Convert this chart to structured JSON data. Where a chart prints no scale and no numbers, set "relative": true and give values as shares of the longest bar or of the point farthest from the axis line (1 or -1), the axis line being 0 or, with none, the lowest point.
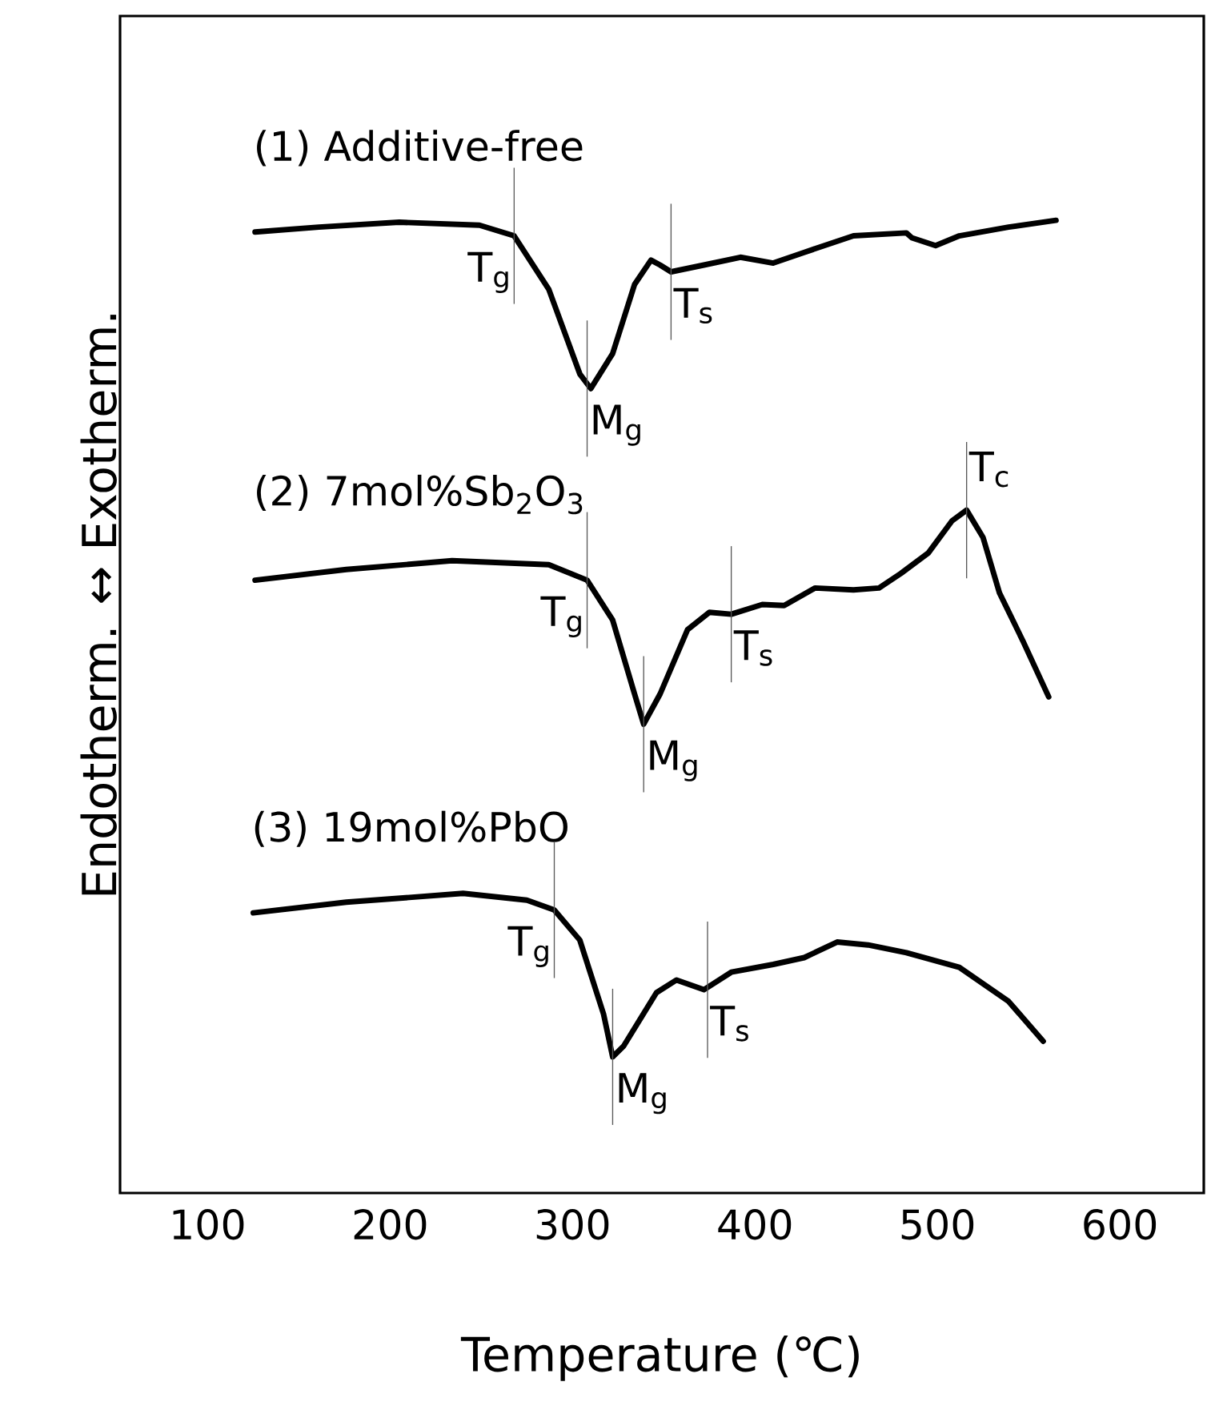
{
  "chart_data": {
    "type": "line",
    "relative": true,
    "xlabel": "Temperature (℃)",
    "ylabel": "Endotherm. ↔ Exotherm.",
    "xlim": [
      52,
      646
    ],
    "xticks": [
      100,
      200,
      300,
      400,
      500,
      600
    ],
    "grid": false,
    "marker": "none",
    "line_style": "solid",
    "series": [
      {
        "name": "(1)  Additive-free",
        "color": "#000000",
        "x": [
          126,
          161,
          205,
          249,
          268,
          287,
          304,
          310,
          322,
          334,
          343,
          348,
          354,
          372,
          392,
          410,
          427,
          454,
          483,
          486,
          499,
          512,
          539,
          565
        ],
        "values": [
          0.988,
          0.993,
          0.998,
          0.995,
          0.984,
          0.929,
          0.842,
          0.827,
          0.863,
          0.934,
          0.959,
          0.954,
          0.947,
          0.954,
          0.962,
          0.956,
          0.967,
          0.984,
          0.987,
          0.982,
          0.974,
          0.984,
          0.993,
          1.0
        ]
      },
      {
        "name": "(2) 7mol%Sb$_{2}$O$_{3}$",
        "color": "#000000",
        "x": [
          126,
          176,
          234,
          287,
          308,
          322,
          334,
          339,
          348,
          363,
          375,
          387,
          404,
          416,
          433,
          454,
          468,
          480,
          495,
          508,
          516,
          525,
          534,
          547,
          561
        ],
        "values": [
          0.63,
          0.641,
          0.65,
          0.646,
          0.63,
          0.589,
          0.513,
          0.482,
          0.513,
          0.579,
          0.597,
          0.595,
          0.605,
          0.604,
          0.622,
          0.62,
          0.622,
          0.637,
          0.658,
          0.691,
          0.702,
          0.674,
          0.617,
          0.567,
          0.51
        ]
      },
      {
        "name": "(3) 19mol%PbO",
        "color": "#000000",
        "x": [
          125,
          176,
          240,
          275,
          290,
          304,
          317,
          322,
          328,
          346,
          357,
          372,
          387,
          410,
          427,
          445,
          462,
          483,
          512,
          539,
          558
        ],
        "values": [
          0.288,
          0.299,
          0.308,
          0.301,
          0.291,
          0.26,
          0.184,
          0.14,
          0.151,
          0.206,
          0.219,
          0.209,
          0.227,
          0.235,
          0.242,
          0.258,
          0.255,
          0.247,
          0.232,
          0.197,
          0.156
        ]
      }
    ],
    "annotations": [
      {
        "text": "T$_{g}$",
        "x": 268,
        "y": 0.984
      },
      {
        "text": "M$_{g}$",
        "x": 308,
        "y": 0.827
      },
      {
        "text": "T$_{s}$",
        "x": 354,
        "y": 0.947
      },
      {
        "text": "T$_{g}$",
        "x": 308,
        "y": 0.63
      },
      {
        "text": "M$_{g}$",
        "x": 339,
        "y": 0.482
      },
      {
        "text": "T$_{s}$",
        "x": 387,
        "y": 0.595
      },
      {
        "text": "T$_{c}$",
        "x": 516,
        "y": 0.702
      },
      {
        "text": "T$_{g}$",
        "x": 290,
        "y": 0.291
      },
      {
        "text": "M$_{g}$",
        "x": 322,
        "y": 0.14
      },
      {
        "text": "T$_{s}$",
        "x": 374,
        "y": 0.209
      }
    ]
  }
}
